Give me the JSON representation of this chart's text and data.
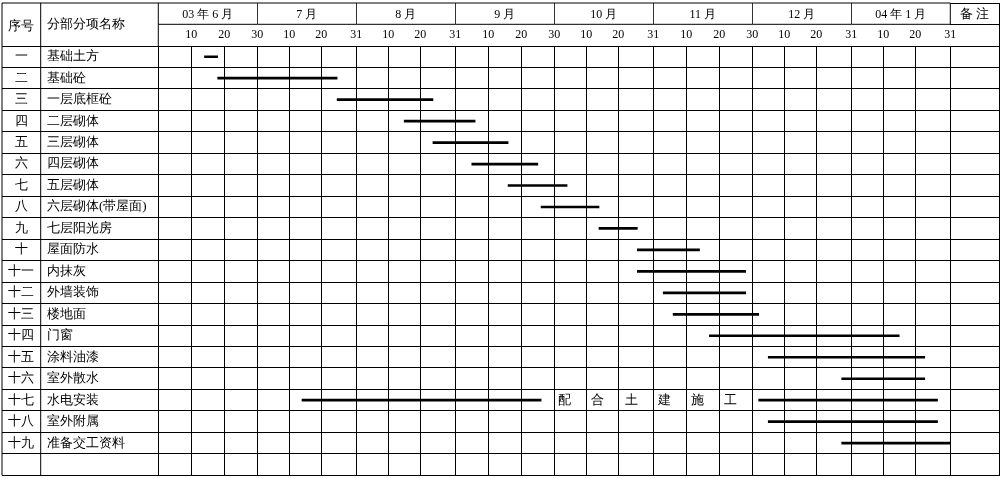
{
  "chart_data": [
    {
      "type": "bar",
      "orientation": "horizontal",
      "title": "03 年 6 月",
      "ylabel": "分部分项名称",
      "y2label": "序号",
      "categories": [
        "基础土方",
        "基础砼",
        "一层底框砼",
        "二层砌体",
        "三层砌体",
        "四层砌体",
        "五层砌体",
        "六层砌体(带屋面)",
        "七层阳光房",
        "屋面防水",
        "内抹灰",
        "外墙装饰",
        "楼地面",
        "门窗",
        "涂料油漆",
        "室外散水",
        "水电安装",
        "室外附属",
        "准备交工资料",
        null
      ],
      "y2_categories": [
        "一",
        "二",
        "三",
        "四",
        "五",
        "六",
        "七",
        "八",
        "九",
        "十",
        "十一",
        "十二",
        "十三",
        "十四",
        "十五",
        "十六",
        "十七",
        "十八",
        "十九",
        null
      ],
      "series": [
        {
          "color": "#000000",
          "base": [
            14,
            18,
            null,
            null,
            null,
            null,
            null,
            null,
            null,
            null,
            null,
            null,
            null,
            null,
            null,
            null,
            null,
            null,
            null,
            null
          ],
          "values": [
            4,
            12,
            null,
            null,
            null,
            null,
            null,
            null,
            null,
            null,
            null,
            null,
            null,
            null,
            null,
            null,
            null,
            null,
            null,
            null
          ]
        }
      ],
      "xlim": [
        0,
        30
      ],
      "xticks": [
        10,
        20,
        30
      ],
      "grid": true
    },
    {
      "type": "bar",
      "orientation": "horizontal",
      "title": "7 月",
      "categories": [
        null,
        null,
        null,
        null,
        null,
        null,
        null,
        null,
        null,
        null,
        null,
        null,
        null,
        null,
        null,
        null,
        null,
        null,
        null,
        null
      ],
      "series": [
        {
          "color": "#000000",
          "base": [
            null,
            0,
            25,
            null,
            null,
            null,
            null,
            null,
            null,
            null,
            null,
            null,
            null,
            null,
            null,
            null,
            14,
            null,
            null,
            null
          ],
          "values": [
            null,
            25,
            6,
            null,
            null,
            null,
            null,
            null,
            null,
            null,
            null,
            null,
            null,
            null,
            null,
            null,
            17,
            null,
            null,
            null
          ]
        }
      ],
      "xlim": [
        0,
        31
      ],
      "xticks": [
        10,
        20,
        31
      ],
      "grid": true
    },
    {
      "type": "bar",
      "orientation": "horizontal",
      "title": "8 月",
      "categories": [
        null,
        null,
        null,
        null,
        null,
        null,
        null,
        null,
        null,
        null,
        null,
        null,
        null,
        null,
        null,
        null,
        null,
        null,
        null,
        null
      ],
      "series": [
        {
          "color": "#000000",
          "base": [
            null,
            null,
            0,
            15,
            24,
            null,
            null,
            null,
            null,
            null,
            null,
            null,
            null,
            null,
            null,
            null,
            0,
            null,
            null,
            null
          ],
          "values": [
            null,
            null,
            24,
            16,
            7,
            null,
            null,
            null,
            null,
            null,
            null,
            null,
            null,
            null,
            null,
            null,
            31,
            null,
            null,
            null
          ]
        }
      ],
      "xlim": [
        0,
        31
      ],
      "xticks": [
        10,
        20,
        31
      ],
      "grid": true
    },
    {
      "type": "bar",
      "orientation": "horizontal",
      "title": "9 月",
      "categories": [
        null,
        null,
        null,
        null,
        null,
        null,
        null,
        null,
        null,
        null,
        null,
        null,
        null,
        null,
        null,
        null,
        null,
        null,
        null,
        null
      ],
      "series": [
        {
          "color": "#000000",
          "base": [
            null,
            null,
            null,
            0,
            0,
            5,
            16,
            26,
            null,
            null,
            null,
            null,
            null,
            null,
            null,
            null,
            0,
            null,
            null,
            null
          ],
          "values": [
            null,
            null,
            null,
            6,
            16,
            20,
            14,
            4,
            null,
            null,
            null,
            null,
            null,
            null,
            null,
            null,
            26,
            null,
            null,
            null
          ]
        }
      ],
      "xlim": [
        0,
        30
      ],
      "xticks": [
        10,
        20,
        30
      ],
      "grid": true
    },
    {
      "type": "bar",
      "orientation": "horizontal",
      "title": "10 月",
      "categories": [
        null,
        null,
        null,
        null,
        null,
        null,
        null,
        null,
        null,
        null,
        null,
        null,
        null,
        null,
        null,
        null,
        null,
        null,
        null,
        null
      ],
      "series": [
        {
          "color": "#000000",
          "base": [
            null,
            null,
            null,
            null,
            null,
            null,
            0,
            0,
            14,
            26,
            26,
            null,
            null,
            null,
            null,
            null,
            null,
            null,
            null,
            null
          ],
          "values": [
            null,
            null,
            null,
            null,
            null,
            null,
            4,
            14,
            12,
            5,
            5,
            null,
            null,
            null,
            null,
            null,
            null,
            null,
            null,
            null
          ]
        }
      ],
      "xlim": [
        0,
        31
      ],
      "xticks": [
        10,
        20,
        31
      ],
      "grid": true,
      "annotations": [
        "配 合 土 建 施 工"
      ]
    },
    {
      "type": "bar",
      "orientation": "horizontal",
      "title": "11 月",
      "categories": [
        null,
        null,
        null,
        null,
        null,
        null,
        null,
        null,
        null,
        null,
        null,
        null,
        null,
        null,
        null,
        null,
        null,
        null,
        null,
        null
      ],
      "series": [
        {
          "color": "#000000",
          "base": [
            null,
            null,
            null,
            null,
            null,
            null,
            null,
            null,
            null,
            0,
            0,
            3,
            6,
            17,
            null,
            null,
            null,
            null,
            null,
            null
          ],
          "values": [
            null,
            null,
            null,
            null,
            null,
            null,
            null,
            null,
            null,
            14,
            28,
            25,
            24,
            13,
            null,
            null,
            null,
            null,
            null,
            null
          ]
        }
      ],
      "xlim": [
        0,
        30
      ],
      "xticks": [
        10,
        20,
        30
      ],
      "grid": true
    },
    {
      "type": "bar",
      "orientation": "horizontal",
      "title": "12 月",
      "categories": [
        null,
        null,
        null,
        null,
        null,
        null,
        null,
        null,
        null,
        null,
        null,
        null,
        null,
        null,
        null,
        null,
        null,
        null,
        null,
        null
      ],
      "series": [
        {
          "color": "#000000",
          "base": [
            null,
            null,
            null,
            null,
            null,
            null,
            null,
            null,
            null,
            null,
            null,
            null,
            0,
            0,
            5,
            28,
            2,
            5,
            28,
            null
          ],
          "values": [
            null,
            null,
            null,
            null,
            null,
            null,
            null,
            null,
            null,
            null,
            null,
            null,
            2,
            31,
            26,
            3,
            29,
            26,
            3,
            null
          ]
        }
      ],
      "xlim": [
        0,
        31
      ],
      "xticks": [
        10,
        20,
        31
      ],
      "grid": true
    },
    {
      "type": "bar",
      "orientation": "horizontal",
      "title": "04 年 1 月",
      "categories": [
        null,
        null,
        null,
        null,
        null,
        null,
        null,
        null,
        null,
        null,
        null,
        null,
        null,
        null,
        null,
        null,
        null,
        null,
        null,
        null
      ],
      "series": [
        {
          "color": "#000000",
          "base": [
            null,
            null,
            null,
            null,
            null,
            null,
            null,
            null,
            null,
            null,
            null,
            null,
            null,
            0,
            0,
            0,
            0,
            0,
            0,
            null
          ],
          "values": [
            null,
            null,
            null,
            null,
            null,
            null,
            null,
            null,
            null,
            null,
            null,
            null,
            null,
            15,
            23,
            23,
            27,
            27,
            31,
            null
          ]
        }
      ],
      "xlim": [
        0,
        31
      ],
      "xticks": [
        10,
        20,
        31
      ],
      "grid": true,
      "annotations": [
        "备 注"
      ]
    }
  ]
}
